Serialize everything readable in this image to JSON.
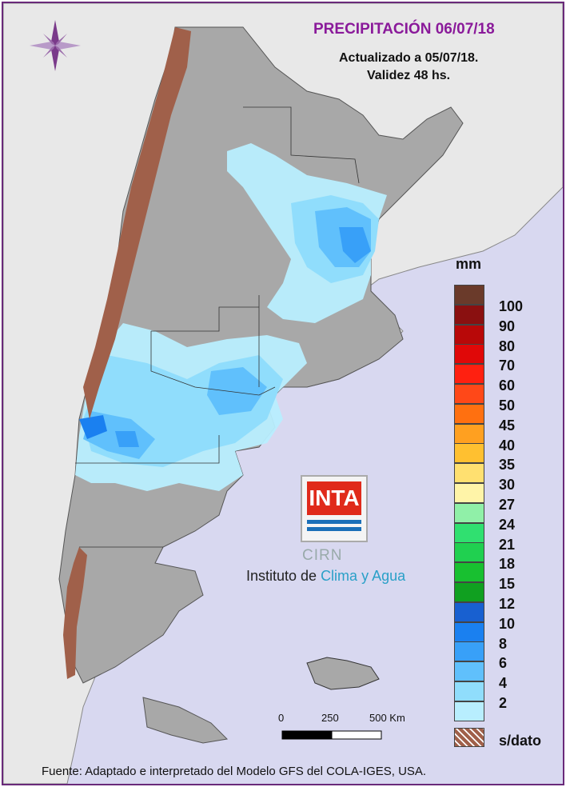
{
  "map": {
    "title": "PRECIPITACIÓN 06/07/18",
    "updated": "Actualizado a 05/07/18.",
    "validity": "Validez 48 hs.",
    "footer": "Fuente: Adaptado e interpretado del Modelo GFS del COLA-IGES, USA.",
    "compass_icon": "compass-rose-icon",
    "sea_color": "#d8d8f0",
    "land_color": "#a8a8a8",
    "no_data_color": "#a0604a"
  },
  "legend": {
    "unit": "mm",
    "no_data_label": "s/dato",
    "classes": [
      {
        "label": "100",
        "color": "#6a3a2a"
      },
      {
        "label": "90",
        "color": "#8a1010"
      },
      {
        "label": "80",
        "color": "#b80808"
      },
      {
        "label": "70",
        "color": "#e00808"
      },
      {
        "label": "60",
        "color": "#ff2010"
      },
      {
        "label": "50",
        "color": "#ff4818"
      },
      {
        "label": "45",
        "color": "#ff7010"
      },
      {
        "label": "40",
        "color": "#ffa020"
      },
      {
        "label": "35",
        "color": "#ffc030"
      },
      {
        "label": "30",
        "color": "#ffe070"
      },
      {
        "label": "27",
        "color": "#fff4a8"
      },
      {
        "label": "24",
        "color": "#90f0a8"
      },
      {
        "label": "21",
        "color": "#30e070"
      },
      {
        "label": "18",
        "color": "#20d050"
      },
      {
        "label": "15",
        "color": "#18c030"
      },
      {
        "label": "12",
        "color": "#10a020"
      },
      {
        "label": "10",
        "color": "#1860d0"
      },
      {
        "label": "8",
        "color": "#1a80f0"
      },
      {
        "label": "6",
        "color": "#38a0f8"
      },
      {
        "label": "4",
        "color": "#60c0fc"
      },
      {
        "label": "2",
        "color": "#90ddfc"
      },
      {
        "label": "",
        "color": "#b8eefe"
      }
    ]
  },
  "scale": {
    "labels": [
      "0",
      "250",
      "500 Km"
    ]
  },
  "logo": {
    "inta": "INTA",
    "cirn": "CIRN",
    "institute_prefix": "Instituto de ",
    "institute_accent": "Clima y Agua"
  }
}
